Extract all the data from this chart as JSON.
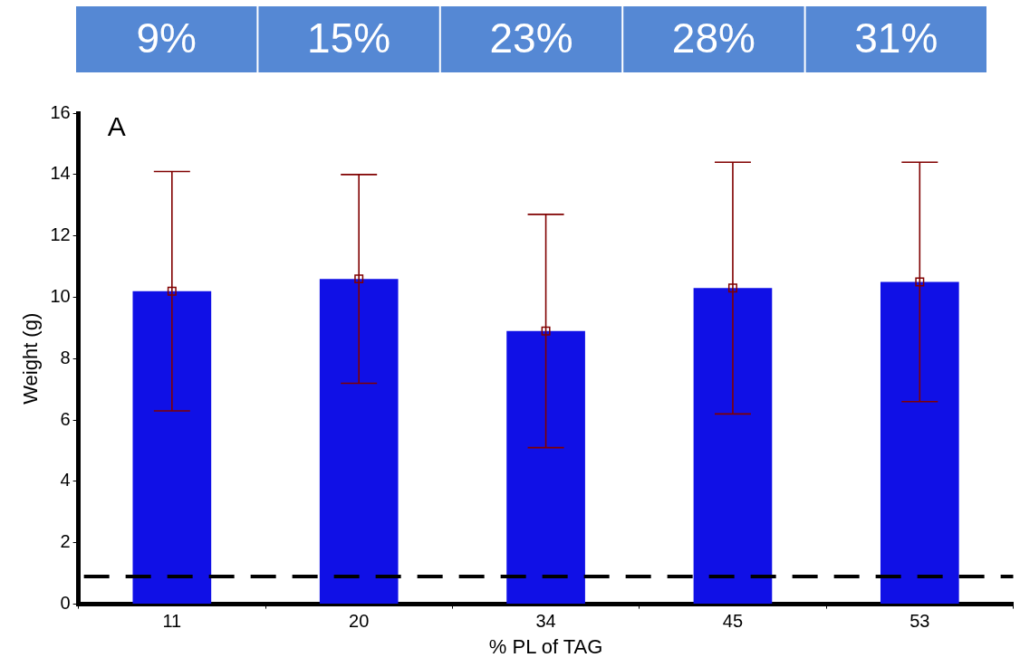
{
  "chart_data": {
    "type": "bar",
    "xlabel": "% PL of TAG",
    "ylabel": "Weight (g)",
    "categories": [
      "11",
      "20",
      "34",
      "45",
      "53"
    ],
    "series": [
      {
        "color": "#1010e6",
        "values": [
          10.2,
          10.6,
          8.9,
          10.3,
          10.5
        ],
        "errors": [
          3.9,
          3.4,
          3.8,
          4.1,
          3.9
        ]
      },
      {
        "type": "scatter",
        "color": "#800000",
        "marker": "square",
        "x": [
          "11",
          "20",
          "34",
          "45",
          "53"
        ],
        "values": [
          10.2,
          10.6,
          8.9,
          10.3,
          10.5
        ]
      }
    ],
    "ylim": [
      0,
      16
    ],
    "yticks": [
      0,
      2,
      4,
      6,
      8,
      10,
      12,
      14,
      16
    ],
    "ref_lines": [
      {
        "axis": "y",
        "value": 0.9,
        "line_style": "dashed",
        "color": "#000000"
      }
    ],
    "annotations": [
      "9%",
      "15%",
      "23%",
      "28%",
      "31%",
      "A"
    ]
  }
}
